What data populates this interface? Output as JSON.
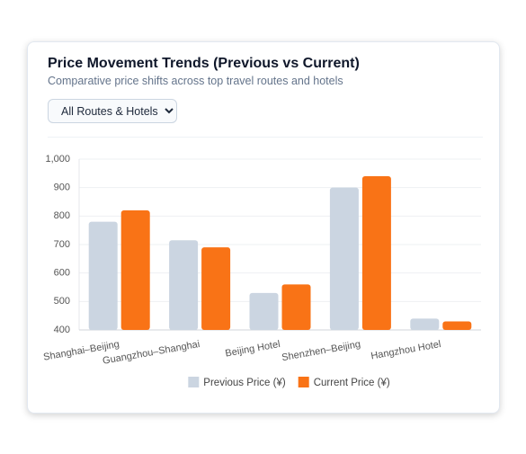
{
  "header": {
    "title": "Price Movement Trends (Previous vs Current)",
    "subtitle": "Comparative price shifts across top travel routes and hotels",
    "filter": "All Routes & Hotels"
  },
  "chart_data": {
    "type": "bar",
    "categories": [
      "Shanghai–Beijing",
      "Guangzhou–Shanghai",
      "Beijing Hotel",
      "Shenzhen–Beijing",
      "Hangzhou Hotel"
    ],
    "series": [
      {
        "name": "Previous Price (¥)",
        "color": "#cbd5e1",
        "values": [
          780,
          715,
          530,
          900,
          440
        ]
      },
      {
        "name": "Current Price (¥)",
        "color": "#f97316",
        "values": [
          820,
          690,
          560,
          940,
          430
        ]
      }
    ],
    "ylim": [
      400,
      1000
    ],
    "yticks": [
      400,
      500,
      600,
      700,
      800,
      900,
      {
        "value": 1000,
        "label": "1,000"
      }
    ],
    "grid": true,
    "legend": "bottom"
  }
}
